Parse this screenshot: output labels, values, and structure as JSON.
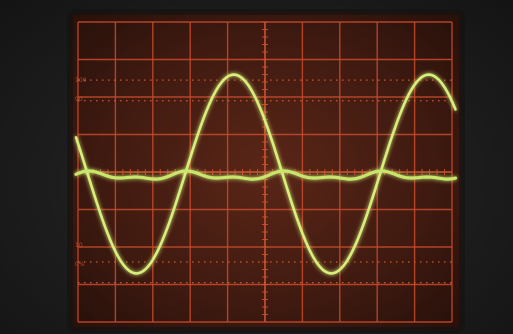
{
  "scene": {
    "subject": "oscilloscope-screen",
    "screen_color": "#4a1f14",
    "graticule_color": "#c94a2c",
    "bezel_color": "#1c1c1c"
  },
  "graticule": {
    "divisions_x": 10,
    "divisions_y": 8,
    "reference_marks": [
      "100",
      "90",
      "10",
      "0%"
    ]
  },
  "traces": [
    {
      "name": "",
      "color": "#d8f07a",
      "shape": "sine",
      "cycles": 2,
      "amplitude_div": 2.65
    },
    {
      "name": "",
      "color": "#c8e66c",
      "shape": "flat-ripple",
      "cycles": 4,
      "amplitude_div": 0.15
    }
  ]
}
